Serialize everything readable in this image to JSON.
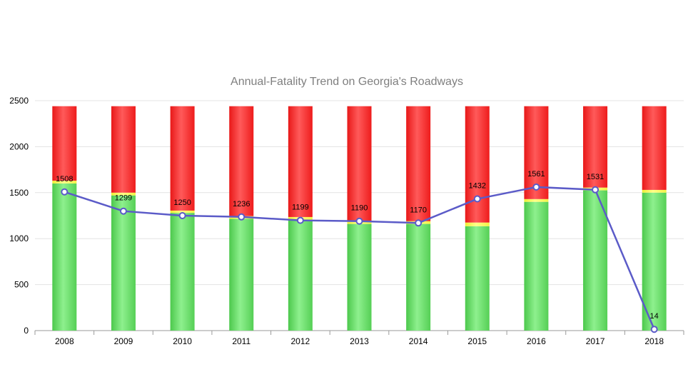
{
  "chart_data": {
    "type": "bar",
    "title": "Annual-Fatality Trend on Georgia's Roadways",
    "xlabel": "",
    "ylabel": "",
    "ylim": [
      0,
      2500
    ],
    "yticks": [
      0,
      500,
      1000,
      1500,
      2000,
      2500
    ],
    "grid": true,
    "legend": "none",
    "categories": [
      "2008",
      "2009",
      "2010",
      "2011",
      "2012",
      "2013",
      "2014",
      "2015",
      "2016",
      "2017",
      "2018"
    ],
    "series": [
      {
        "kind": "bar-stack",
        "color": "#66dd66",
        "values": [
          1600,
          1470,
          1280,
          1215,
          1205,
          1160,
          1160,
          1135,
          1400,
          1525,
          1500
        ]
      },
      {
        "kind": "bar-stack",
        "color": "#ffff55",
        "values": [
          30,
          30,
          25,
          30,
          30,
          35,
          30,
          40,
          30,
          30,
          30
        ]
      },
      {
        "kind": "bar-stack",
        "color": "#ff2a2a",
        "values": [
          810,
          940,
          1135,
          1195,
          1205,
          1245,
          1250,
          1265,
          1010,
          885,
          910
        ]
      },
      {
        "kind": "line",
        "color": "#5b5bc8",
        "values": [
          1508,
          1299,
          1250,
          1236,
          1199,
          1190,
          1170,
          1432,
          1561,
          1531,
          14
        ],
        "labels": [
          "1508",
          "1299",
          "1250",
          "1236",
          "1199",
          "1190",
          "1170",
          "1432",
          "1561",
          "1531",
          "14"
        ]
      }
    ]
  }
}
